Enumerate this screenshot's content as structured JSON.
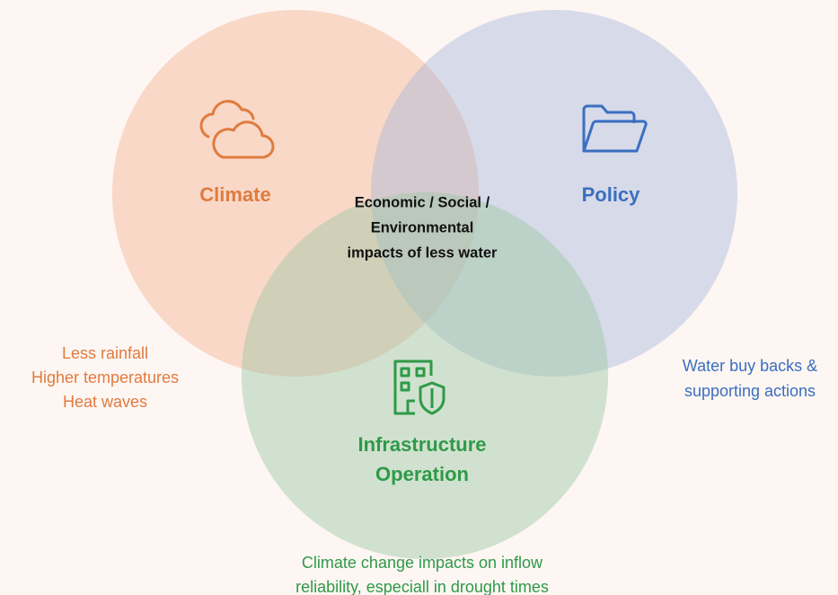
{
  "circles": [
    {
      "label": [
        "Climate"
      ],
      "notes": [
        "Less rainfall",
        "Higher temperatures",
        "Heat waves"
      ]
    },
    {
      "label": [
        "Policy"
      ],
      "notes": [
        "Water buy backs &",
        "supporting actions"
      ]
    },
    {
      "label": [
        "Infrastructure",
        "Operation"
      ],
      "notes": [
        "Climate change impacts on inflow",
        "reliability, especiall in drought times"
      ]
    }
  ],
  "center_label": [
    "Economic / Social /",
    "Environmental",
    "impacts of less water"
  ]
}
